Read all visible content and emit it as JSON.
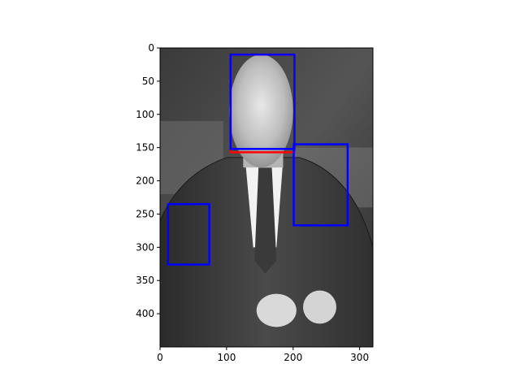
{
  "figure": {
    "xlim": [
      0,
      320
    ],
    "ylim": [
      450,
      0
    ],
    "xticks": [
      {
        "value": 0,
        "label": "0"
      },
      {
        "value": 100,
        "label": "100"
      },
      {
        "value": 200,
        "label": "200"
      },
      {
        "value": 300,
        "label": "300"
      }
    ],
    "yticks": [
      {
        "value": 0,
        "label": "0"
      },
      {
        "value": 50,
        "label": "50"
      },
      {
        "value": 100,
        "label": "100"
      },
      {
        "value": 150,
        "label": "150"
      },
      {
        "value": 200,
        "label": "200"
      },
      {
        "value": 250,
        "label": "250"
      },
      {
        "value": 300,
        "label": "300"
      },
      {
        "value": 350,
        "label": "350"
      },
      {
        "value": 400,
        "label": "400"
      }
    ],
    "image_description_icon": "grayscale-photo-man-in-suit",
    "boxes": [
      {
        "name": "face-box-red",
        "color": "#ff0000",
        "x0": 106,
        "y0": 10,
        "x1": 202,
        "y1": 157
      },
      {
        "name": "face-box-blue",
        "color": "#0000ff",
        "x0": 106,
        "y0": 10,
        "x1": 202,
        "y1": 152
      },
      {
        "name": "chest-box-blue",
        "color": "#0000ff",
        "x0": 201,
        "y0": 145,
        "x1": 282,
        "y1": 267
      },
      {
        "name": "hand-box-blue",
        "color": "#0000ff",
        "x0": 12,
        "y0": 235,
        "x1": 74,
        "y1": 326
      }
    ]
  }
}
